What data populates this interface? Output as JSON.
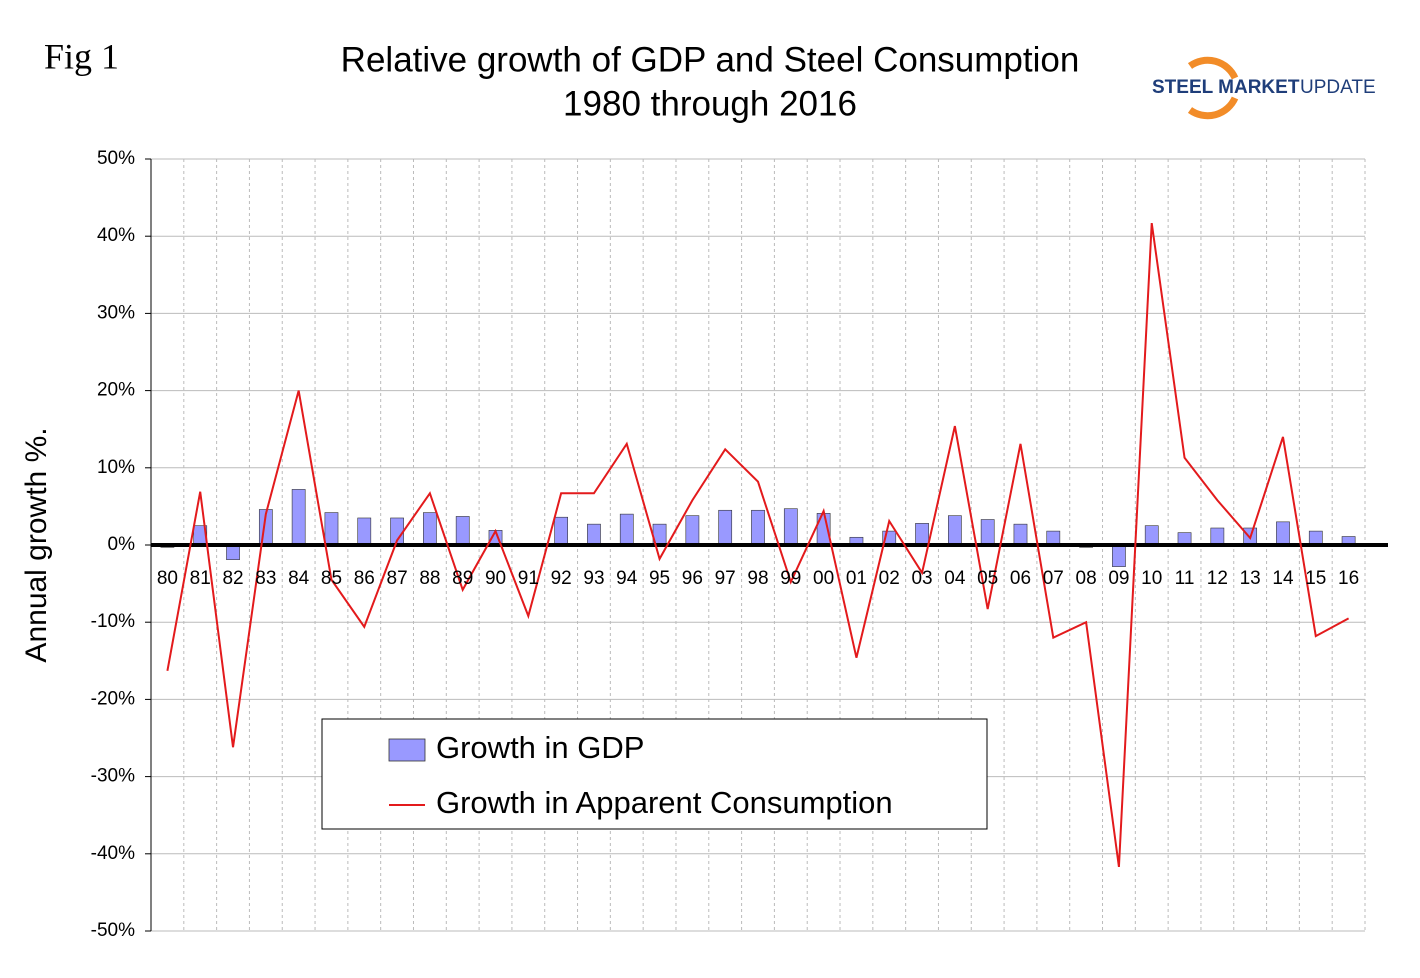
{
  "fig_label": "Fig 1",
  "logo": {
    "bold": "STEEL MARKET",
    "light": "UPDATE"
  },
  "chart_data": {
    "type": "bar-line",
    "title": [
      "Relative growth of GDP and Steel Consumption",
      "1980 through 2016"
    ],
    "y_label": "Annual growth %.",
    "categories": [
      "80",
      "81",
      "82",
      "83",
      "84",
      "85",
      "86",
      "87",
      "88",
      "89",
      "90",
      "91",
      "92",
      "93",
      "94",
      "95",
      "96",
      "97",
      "98",
      "99",
      "00",
      "01",
      "02",
      "03",
      "04",
      "05",
      "06",
      "07",
      "08",
      "09",
      "10",
      "11",
      "12",
      "13",
      "14",
      "15",
      "16"
    ],
    "series": [
      {
        "name": "Growth in GDP",
        "type": "bar",
        "color": "#9999ff",
        "values": [
          -0.3,
          2.5,
          -1.9,
          4.6,
          7.2,
          4.2,
          3.5,
          3.5,
          4.2,
          3.7,
          1.9,
          -0.1,
          3.6,
          2.7,
          4.0,
          2.7,
          3.8,
          4.5,
          4.5,
          4.7,
          4.1,
          1.0,
          1.8,
          2.8,
          3.8,
          3.3,
          2.7,
          1.8,
          -0.3,
          -2.8,
          2.5,
          1.6,
          2.2,
          2.2,
          3.0,
          1.8,
          1.1
        ]
      },
      {
        "name": "Growth in Apparent Consumption",
        "type": "line",
        "color": "#e31a1c",
        "values": [
          -16.3,
          6.9,
          -26.2,
          4.0,
          20.0,
          -4.5,
          -10.6,
          0.6,
          6.7,
          -5.8,
          1.8,
          -9.2,
          6.7,
          6.7,
          13.1,
          -1.8,
          5.8,
          12.4,
          8.2,
          -4.8,
          4.4,
          -14.6,
          3.1,
          -3.6,
          15.4,
          -8.3,
          13.1,
          -12.0,
          -10.0,
          -41.7,
          41.7,
          11.3,
          5.8,
          0.9,
          14.0,
          -11.8,
          -9.5
        ]
      }
    ],
    "ylim": [
      -50,
      50
    ],
    "yticks": [
      {
        "value": -50,
        "label": "-50%"
      },
      {
        "value": -40,
        "label": "-40%"
      },
      {
        "value": -30,
        "label": "-30%"
      },
      {
        "value": -20,
        "label": "-20%"
      },
      {
        "value": -10,
        "label": "-10%"
      },
      {
        "value": 0,
        "label": "0%"
      },
      {
        "value": 10,
        "label": "10%"
      },
      {
        "value": 20,
        "label": "20%"
      },
      {
        "value": 30,
        "label": "30%"
      },
      {
        "value": 40,
        "label": "40%"
      },
      {
        "value": 50,
        "label": "50%"
      }
    ],
    "grid": true
  }
}
